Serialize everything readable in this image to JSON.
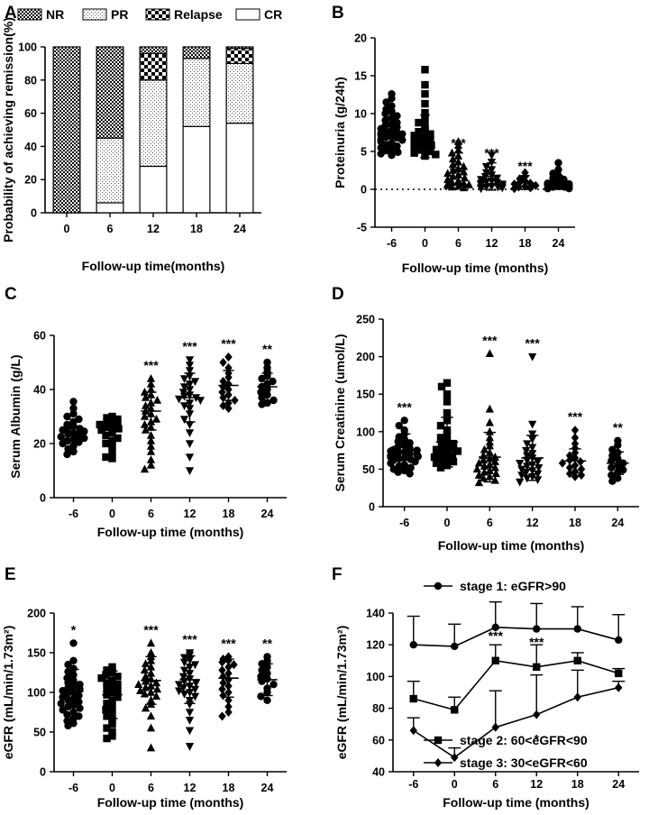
{
  "panel_letters": [
    "A",
    "B",
    "C",
    "D",
    "E",
    "F"
  ],
  "chart_data": [
    {
      "id": "A",
      "type": "bar",
      "stacked": true,
      "categories": [
        "0",
        "6",
        "12",
        "18",
        "24"
      ],
      "series": [
        {
          "name": "CR",
          "values": [
            0,
            6,
            28,
            52,
            54
          ]
        },
        {
          "name": "PR",
          "values": [
            0,
            39,
            52,
            41,
            36
          ]
        },
        {
          "name": "Relapse",
          "values": [
            0,
            0,
            16,
            0,
            9
          ]
        },
        {
          "name": "NR",
          "values": [
            100,
            55,
            4,
            7,
            1
          ]
        }
      ],
      "legend": [
        "NR",
        "PR",
        "Relapse",
        "CR"
      ],
      "xlabel": "Follow-up time(months)",
      "ylabel": "Probability of achieving remission(%)",
      "ylim": [
        0,
        100
      ],
      "yticks": [
        "0",
        "20",
        "40",
        "60",
        "80",
        "100"
      ]
    },
    {
      "id": "B",
      "type": "scatter",
      "categories": [
        "-6",
        "0",
        "6",
        "12",
        "18",
        "24"
      ],
      "markers": [
        "circle",
        "square",
        "triangle",
        "triangle-down",
        "diamond",
        "circle"
      ],
      "means": [
        7.5,
        7.0,
        2.7,
        1.7,
        0.9,
        0.9
      ],
      "sd": [
        2.0,
        2.8,
        2.1,
        1.8,
        0.9,
        0.9
      ],
      "points": [
        [
          12.6,
          12.0,
          11.5,
          11.0,
          10.6,
          10.3,
          10.0,
          9.7,
          9.4,
          9.1,
          8.8,
          8.6,
          8.4,
          8.2,
          8.0,
          7.8,
          7.6,
          7.5,
          7.4,
          7.3,
          7.2,
          7.0,
          6.9,
          6.8,
          6.6,
          6.5,
          6.3,
          6.1,
          5.9,
          5.7,
          5.5,
          5.3,
          5.1,
          4.9,
          4.7,
          4.5
        ],
        [
          15.8,
          13.8,
          12.6,
          11.3,
          10.1,
          9.3,
          8.8,
          8.3,
          7.9,
          7.6,
          7.3,
          7.1,
          6.9,
          6.7,
          6.5,
          6.3,
          6.1,
          5.9,
          5.8,
          5.6,
          5.4,
          5.2,
          5.0,
          4.8,
          4.6,
          4.4
        ],
        [
          6.3,
          5.8,
          5.2,
          4.8,
          4.4,
          4.0,
          3.6,
          3.3,
          3.0,
          2.7,
          2.5,
          2.3,
          2.1,
          1.9,
          1.7,
          1.5,
          1.3,
          1.1,
          0.9,
          0.8,
          0.7,
          0.6,
          0.5,
          0.4,
          0.3,
          0.2
        ],
        [
          4.5,
          3.6,
          3.0,
          2.6,
          2.2,
          1.9,
          1.7,
          1.5,
          1.3,
          1.1,
          1.0,
          0.9,
          0.8,
          0.7,
          0.6,
          0.5,
          0.4,
          0.3,
          0.3,
          0.2,
          0.2,
          0.1
        ],
        [
          2.2,
          1.7,
          1.4,
          1.1,
          0.9,
          0.8,
          0.7,
          0.5,
          0.4,
          0.3,
          0.2,
          0.1
        ],
        [
          3.5,
          2.6,
          2.1,
          1.8,
          1.5,
          1.3,
          1.2,
          1.0,
          0.9,
          0.8,
          0.7,
          0.6,
          0.5,
          0.4,
          0.3,
          0.3,
          0.2,
          0.2,
          0.1,
          0.1
        ]
      ],
      "annotations": [
        "",
        "",
        "***",
        "***",
        "***",
        ""
      ],
      "xlabel": "Follow-up time (months)",
      "ylabel": "Proteinuria (g/24h)",
      "ylim": [
        -5,
        20
      ],
      "yticks": [
        "-5",
        "0",
        "5",
        "10",
        "15",
        "20"
      ],
      "reference_line": 0
    },
    {
      "id": "C",
      "type": "scatter",
      "categories": [
        "-6",
        "0",
        "6",
        "12",
        "18",
        "24"
      ],
      "markers": [
        "circle",
        "square",
        "triangle",
        "triangle-down",
        "diamond",
        "circle"
      ],
      "means": [
        24.5,
        25.0,
        32.0,
        37.0,
        41.5,
        41.0
      ],
      "sd": [
        4.5,
        4.0,
        7.0,
        9.0,
        5.5,
        5.0
      ],
      "points": [
        [
          35.5,
          33.0,
          31.0,
          30.0,
          29.0,
          28.0,
          27.0,
          26.5,
          26.0,
          25.5,
          25.0,
          24.5,
          24.0,
          23.5,
          23.0,
          22.5,
          22.0,
          21.5,
          21.0,
          20.5,
          20.0,
          19.0,
          18.0,
          17.0,
          16.0
        ],
        [
          30.0,
          29.5,
          29.0,
          28.5,
          28.0,
          27.5,
          27.0,
          26.5,
          26.0,
          25.5,
          25.0,
          24.0,
          23.0,
          22.0,
          21.0,
          20.0,
          19.0,
          17.0,
          15.0,
          14.5
        ],
        [
          44.0,
          42.0,
          40.0,
          39.0,
          38.0,
          37.0,
          36.0,
          35.0,
          34.0,
          33.0,
          32.0,
          31.0,
          30.0,
          29.0,
          28.0,
          27.0,
          26.0,
          25.0,
          23.0,
          21.0,
          19.0,
          17.0,
          14.0,
          12.0,
          10.5
        ],
        [
          51.0,
          49.0,
          47.0,
          45.0,
          44.0,
          43.0,
          42.0,
          41.0,
          40.0,
          39.0,
          38.0,
          37.5,
          37.0,
          36.5,
          36.0,
          35.0,
          34.0,
          33.0,
          31.0,
          29.0,
          27.0,
          24.0,
          20.0,
          15.0,
          10.0
        ],
        [
          52.0,
          50.0,
          48.0,
          46.0,
          44.5,
          43.0,
          42.0,
          41.0,
          40.0,
          39.0,
          38.0,
          37.0,
          36.0,
          35.0,
          34.0,
          33.0
        ],
        [
          50.0,
          48.0,
          46.5,
          45.0,
          44.0,
          43.0,
          42.0,
          41.0,
          40.0,
          39.0,
          38.0,
          37.0,
          36.0,
          35.0,
          34.5
        ]
      ],
      "annotations": [
        "",
        "",
        "***",
        "***",
        "***",
        "**"
      ],
      "xlabel": "Follow-up time (months)",
      "ylabel": "Serum Albumin (g/L)",
      "ylim": [
        0,
        60
      ],
      "yticks": [
        "0",
        "20",
        "40",
        "60"
      ]
    },
    {
      "id": "D",
      "type": "scatter",
      "categories": [
        "-6",
        "0",
        "6",
        "12",
        "18",
        "24"
      ],
      "markers": [
        "circle",
        "square",
        "triangle",
        "triangle-down",
        "diamond",
        "circle"
      ],
      "means": [
        75,
        86,
        66,
        65,
        61,
        58
      ],
      "sd": [
        22,
        33,
        33,
        30,
        16,
        15
      ],
      "points": [
        [
          115,
          108,
          102,
          97,
          93,
          90,
          87,
          85,
          82,
          80,
          78,
          76,
          75,
          74,
          73,
          72,
          71,
          70,
          69,
          68,
          67,
          66,
          65,
          64,
          63,
          62,
          60,
          58,
          56,
          54,
          52,
          50,
          48,
          46,
          44
        ],
        [
          165,
          160,
          150,
          140,
          125,
          115,
          108,
          102,
          96,
          92,
          88,
          86,
          84,
          82,
          80,
          78,
          76,
          74,
          72,
          70,
          68,
          66,
          64,
          62,
          60,
          58,
          55,
          52
        ],
        [
          204,
          130,
          112,
          100,
          92,
          86,
          81,
          76,
          72,
          68,
          66,
          64,
          62,
          60,
          58,
          56,
          54,
          52,
          50,
          48,
          46,
          44,
          42,
          40,
          38,
          35,
          32
        ],
        [
          200,
          110,
          97,
          90,
          84,
          79,
          75,
          71,
          68,
          65,
          62,
          60,
          58,
          56,
          54,
          52,
          50,
          48,
          46,
          44,
          42,
          40,
          38,
          36,
          33
        ],
        [
          102,
          92,
          84,
          78,
          72,
          68,
          65,
          62,
          60,
          58,
          55,
          52,
          50,
          47,
          44,
          42,
          40
        ],
        [
          88,
          82,
          76,
          72,
          68,
          64,
          61,
          58,
          55,
          52,
          49,
          46,
          42,
          38,
          34
        ]
      ],
      "annotations": [
        "***",
        "",
        "***",
        "***",
        "***",
        "**"
      ],
      "xlabel": "Follow-up time (months)",
      "ylabel": "Serum Creatinine (umol/L)",
      "ylim": [
        0,
        250
      ],
      "yticks": [
        "0",
        "50",
        "100",
        "150",
        "200",
        "250"
      ]
    },
    {
      "id": "E",
      "type": "scatter",
      "categories": [
        "-6",
        "0",
        "6",
        "12",
        "18",
        "24"
      ],
      "markers": [
        "circle",
        "square",
        "triangle",
        "triangle-down",
        "diamond",
        "circle"
      ],
      "means": [
        101,
        97,
        115,
        116,
        118,
        116
      ],
      "sd": [
        28,
        30,
        30,
        30,
        24,
        20
      ],
      "points": [
        [
          162,
          140,
          135,
          130,
          126,
          122,
          118,
          115,
          112,
          110,
          108,
          106,
          104,
          102,
          100,
          98,
          96,
          94,
          92,
          90,
          88,
          86,
          84,
          82,
          80,
          78,
          75,
          72,
          70,
          67,
          64,
          61,
          58
        ],
        [
          132,
          128,
          125,
          122,
          120,
          118,
          115,
          112,
          110,
          108,
          105,
          102,
          100,
          97,
          94,
          90,
          86,
          82,
          78,
          74,
          70,
          65,
          60,
          55,
          50,
          45,
          42
        ],
        [
          162,
          150,
          145,
          140,
          136,
          132,
          128,
          124,
          120,
          117,
          114,
          112,
          110,
          108,
          106,
          104,
          102,
          100,
          98,
          95,
          90,
          85,
          80,
          70,
          55,
          30
        ],
        [
          150,
          147,
          144,
          141,
          138,
          135,
          132,
          128,
          124,
          120,
          117,
          114,
          112,
          110,
          108,
          106,
          104,
          102,
          100,
          98,
          95,
          90,
          85,
          75,
          65,
          52,
          32
        ],
        [
          145,
          142,
          140,
          138,
          135,
          132,
          128,
          124,
          120,
          116,
          112,
          108,
          104,
          100,
          96,
          90,
          82,
          75,
          70
        ],
        [
          145,
          140,
          136,
          132,
          128,
          124,
          120,
          117,
          114,
          110,
          105,
          100,
          95,
          90
        ]
      ],
      "annotations": [
        "*",
        "",
        "***",
        "***",
        "***",
        "**"
      ],
      "xlabel": "Follow-up time (months)",
      "ylabel": "eGFR (mL/min/1.73m²)",
      "ylim": [
        0,
        200
      ],
      "yticks": [
        "0",
        "50",
        "100",
        "150",
        "200"
      ]
    },
    {
      "id": "F",
      "type": "line",
      "x": [
        "-6",
        "0",
        "6",
        "12",
        "18",
        "24"
      ],
      "series": [
        {
          "name": "stage 1: eGFR>90",
          "marker": "circle",
          "values": [
            120,
            119,
            131,
            130,
            130,
            123
          ],
          "sd_upper": [
            18,
            14,
            16,
            16,
            14,
            16
          ]
        },
        {
          "name": "stage 2: 60<eGFR<90",
          "marker": "square",
          "values": [
            86,
            79,
            110,
            106,
            110,
            102
          ],
          "sd_upper": [
            11,
            8,
            10,
            14,
            5,
            3
          ]
        },
        {
          "name": "stage 3: 30<eGFR<60",
          "marker": "diamond",
          "values": [
            66,
            49,
            68,
            76,
            87,
            93
          ],
          "sd_upper": [
            8,
            6,
            23,
            25,
            17,
            4
          ]
        }
      ],
      "annotations": [
        {
          "x": "6",
          "text": "***",
          "value": 123
        },
        {
          "x": "12",
          "text": "***",
          "value": 119
        },
        {
          "x": "12",
          "text": "*",
          "value": 58
        }
      ],
      "xlabel": "Follow-up time (months)",
      "ylabel": "eGFR (mL/min/1.73m²)",
      "ylim": [
        40,
        140
      ],
      "yticks": [
        "40",
        "60",
        "80",
        "100",
        "120",
        "140"
      ]
    }
  ]
}
